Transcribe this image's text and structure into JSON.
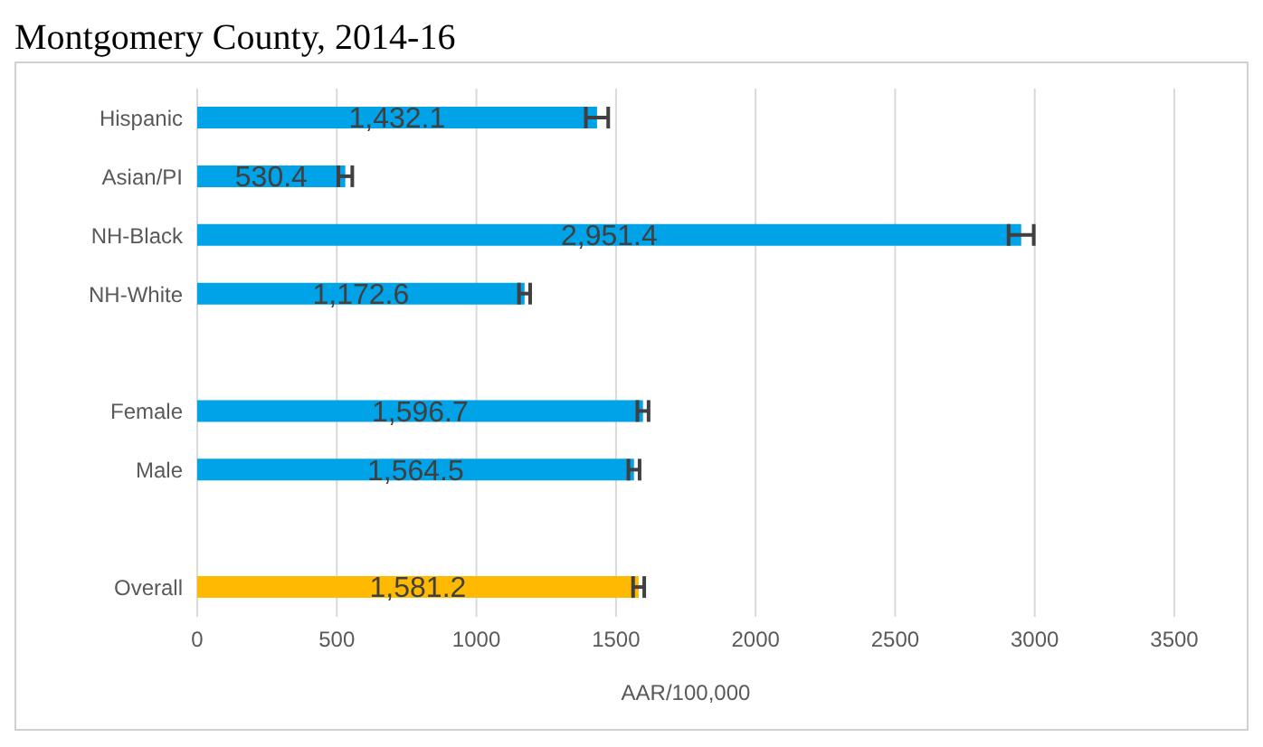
{
  "chart_data": {
    "type": "bar",
    "orientation": "horizontal",
    "title": "Montgomery County, 2014-16",
    "categories": [
      "Hispanic",
      "Asian/PI",
      "NH-Black",
      "NH-White",
      null,
      "Female",
      "Male",
      null,
      "Overall"
    ],
    "values": [
      1432.1,
      530.4,
      2951.4,
      1172.6,
      null,
      1596.7,
      1564.5,
      null,
      1581.2
    ],
    "errors": [
      40,
      25,
      45,
      20,
      null,
      20,
      20,
      null,
      20
    ],
    "value_labels": [
      "1,432.1",
      "530.4",
      "2,951.4",
      "1,172.6",
      null,
      "1,596.7",
      "1,564.5",
      null,
      "1,581.2"
    ],
    "colors": [
      "#00a2e8",
      "#00a2e8",
      "#00a2e8",
      "#00a2e8",
      "#00a2e8",
      "#00a2e8",
      "#00a2e8",
      "#00a2e8",
      "#ffb900"
    ],
    "xlabel": "AAR/100,000",
    "xlim": [
      0,
      3500
    ],
    "xticks": [
      0,
      500,
      1000,
      1500,
      2000,
      2500,
      3000,
      3500
    ],
    "grid": "x",
    "legend": false
  }
}
